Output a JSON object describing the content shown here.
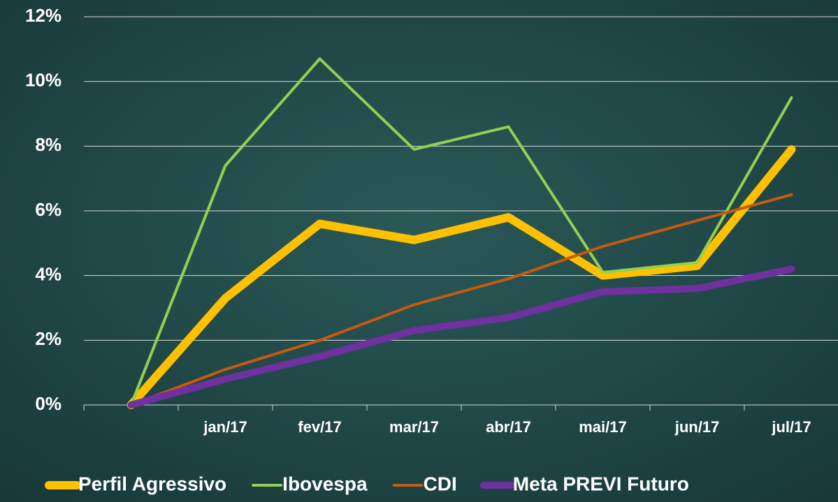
{
  "chart_data": {
    "type": "line",
    "categories": [
      null,
      "jan/17",
      "fev/17",
      "mar/17",
      "abr/17",
      "mai/17",
      "jun/17",
      "jul/17"
    ],
    "series": [
      {
        "name": "Perfil Agressivo",
        "color": "#FFC000",
        "values": [
          0,
          3.3,
          5.6,
          5.1,
          5.8,
          4.0,
          4.3,
          7.9
        ]
      },
      {
        "name": "Ibovespa",
        "color": "#92D050",
        "values": [
          0,
          7.4,
          10.7,
          7.9,
          8.6,
          4.1,
          4.4,
          9.5
        ]
      },
      {
        "name": "CDI",
        "color": "#C55A11",
        "values": [
          0,
          1.1,
          2.0,
          3.1,
          3.9,
          4.9,
          5.7,
          6.5
        ]
      },
      {
        "name": "Meta PREVI Futuro",
        "color": "#7030A0",
        "values": [
          0,
          0.8,
          1.5,
          2.3,
          2.7,
          3.5,
          3.6,
          4.2
        ]
      }
    ],
    "ylim": [
      0,
      12
    ],
    "yticks": [
      {
        "value": 0,
        "label": "0%"
      },
      {
        "value": 2,
        "label": "2%"
      },
      {
        "value": 4,
        "label": "4%"
      },
      {
        "value": 6,
        "label": "6%"
      },
      {
        "value": 8,
        "label": "8%"
      },
      {
        "value": 10,
        "label": "10%"
      },
      {
        "value": 12,
        "label": "12%"
      }
    ],
    "grid": true,
    "legend": "bottom"
  }
}
